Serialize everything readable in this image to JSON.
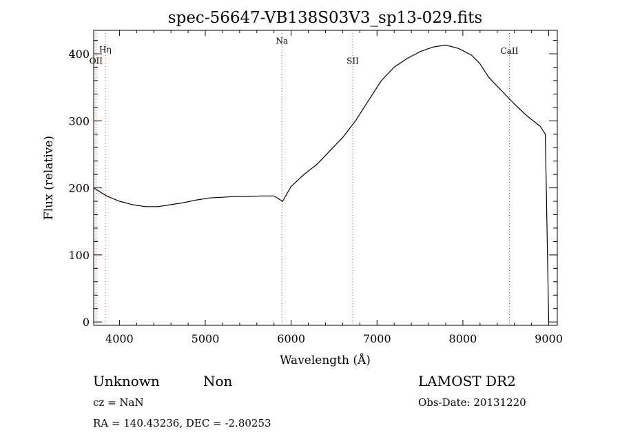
{
  "chart_data": {
    "type": "line",
    "title": "spec-56647-VB138S03V3_sp13-029.fits",
    "xlabel": "Wavelength (Å)",
    "ylabel": "Flux (relative)",
    "xlim": [
      3700,
      9100
    ],
    "ylim": [
      -5,
      435
    ],
    "xticks": [
      4000,
      5000,
      6000,
      7000,
      8000,
      9000
    ],
    "yticks": [
      0,
      100,
      200,
      300,
      400
    ],
    "grid": false,
    "line_color": "#000000",
    "marker_color": "#cc3333",
    "lines": [
      {
        "label": "OII",
        "x": 3727,
        "label_flux": 385
      },
      {
        "label": "Hη",
        "x": 3835,
        "label_flux": 402
      },
      {
        "label": "Na",
        "x": 5893,
        "label_flux": 415
      },
      {
        "label": "SII",
        "x": 6717,
        "label_flux": 385
      },
      {
        "label": "CaII",
        "x": 8542,
        "label_flux": 400
      }
    ],
    "series": [
      {
        "x": [
          3700,
          3850,
          4000,
          4150,
          4300,
          4450,
          4600,
          4750,
          4900,
          5050,
          5200,
          5350,
          5500,
          5650,
          5800,
          5900,
          6000,
          6150,
          6300,
          6450,
          6600,
          6750,
          6900,
          7050,
          7200,
          7350,
          7500,
          7650,
          7800,
          7950,
          8100,
          8200,
          8300,
          8450,
          8600,
          8750,
          8900,
          8960,
          9000
        ],
        "values": [
          200,
          188,
          180,
          175,
          172,
          172,
          175,
          178,
          182,
          185,
          186,
          187,
          187,
          188,
          188,
          180,
          202,
          220,
          235,
          255,
          275,
          300,
          330,
          360,
          380,
          393,
          403,
          410,
          413,
          408,
          398,
          385,
          365,
          345,
          325,
          307,
          292,
          280,
          0
        ]
      }
    ]
  },
  "footer": {
    "object_class": "Unknown",
    "subclass": "Non",
    "survey": "LAMOST DR2",
    "cz": "cz = NaN",
    "obs_date": "Obs-Date: 20131220",
    "coords": "RA = 140.43236, DEC =  -2.80253"
  }
}
